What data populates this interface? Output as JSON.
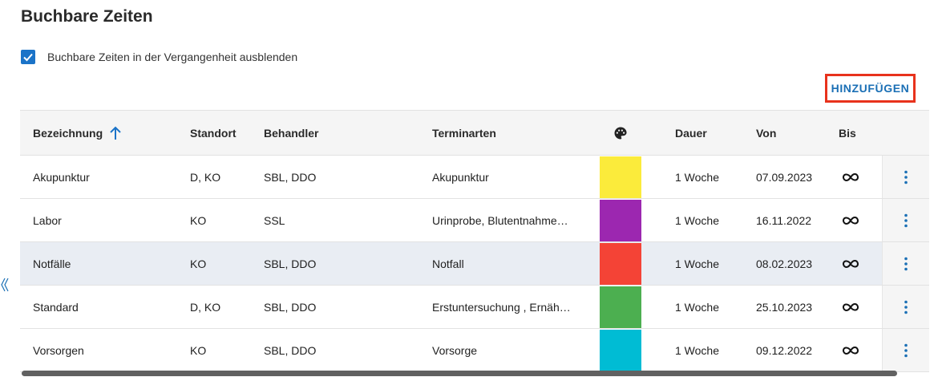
{
  "title": "Buchbare Zeiten",
  "filter": {
    "label": "Buchbare Zeiten in der Vergangenheit ausblenden",
    "checked": true
  },
  "add_button_label": "HINZUFÜGEN",
  "columns": {
    "name": "Bezeichnung",
    "location": "Standort",
    "practitioner": "Behandler",
    "types": "Terminarten",
    "color_icon": "palette-icon",
    "duration": "Dauer",
    "from": "Von",
    "to": "Bis"
  },
  "sort": {
    "column": "Bezeichnung",
    "direction": "ascending"
  },
  "rows": [
    {
      "name": "Akupunktur",
      "location": "D, KO",
      "practitioner": "SBL, DDO",
      "types": "Akupunktur",
      "color": "#fbeb3b",
      "duration": "1 Woche",
      "from": "07.09.2023",
      "to": "infinity-icon",
      "highlighted": false
    },
    {
      "name": "Labor",
      "location": "KO",
      "practitioner": "SSL",
      "types": "Urinprobe, Blutentnahme…",
      "color": "#9c27b0",
      "duration": "1 Woche",
      "from": "16.11.2022",
      "to": "infinity-icon",
      "highlighted": false
    },
    {
      "name": "Notfälle",
      "location": "KO",
      "practitioner": "SBL, DDO",
      "types": "Notfall",
      "color": "#f44336",
      "duration": "1 Woche",
      "from": "08.02.2023",
      "to": "infinity-icon",
      "highlighted": true
    },
    {
      "name": "Standard",
      "location": "D, KO",
      "practitioner": "SBL, DDO",
      "types": "Erstuntersuchung , Ernäh…",
      "color": "#4caf50",
      "duration": "1 Woche",
      "from": "25.10.2023",
      "to": "infinity-icon",
      "highlighted": false
    },
    {
      "name": "Vorsorgen",
      "location": "KO",
      "practitioner": "SBL, DDO",
      "types": "Vorsorge",
      "color": "#00bcd4",
      "duration": "1 Woche",
      "from": "09.12.2022",
      "to": "infinity-icon",
      "highlighted": false
    }
  ],
  "colors": {
    "accent": "#1a73c8",
    "highlight_border": "#e8321c"
  }
}
